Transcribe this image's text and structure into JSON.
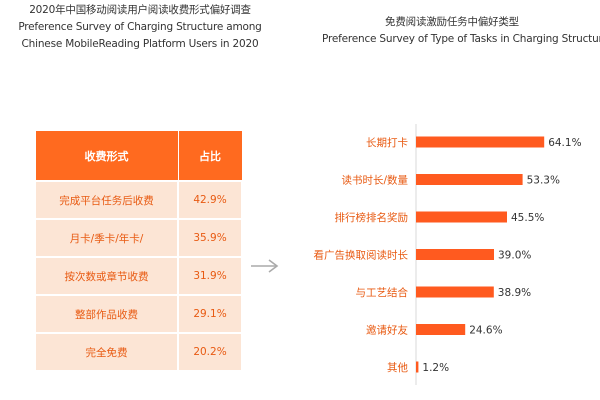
{
  "left_title": {
    "line1": "2020年中国移动阅读用户阅读收费形式偏好调查",
    "line2": "Preference Survey of Charging Structure among",
    "line3": "Chinese MobileReading Platform Users in 2020"
  },
  "right_title": {
    "line1": "免费阅读激励任务中偏好类型",
    "line2": "Preference Survey of Type of Tasks in Charging Structure"
  },
  "table": {
    "headers": [
      "收费形式",
      "占比"
    ],
    "rows": [
      {
        "form": "完成平台任务后收费",
        "share": "42.9%"
      },
      {
        "form": "月卡/季卡/年卡/",
        "share": "35.9%"
      },
      {
        "form": "按次数或章节收费",
        "share": "31.9%"
      },
      {
        "form": "整部作品收费",
        "share": "29.1%"
      },
      {
        "form": "完全免费",
        "share": "20.2%"
      }
    ]
  },
  "chart_data": {
    "type": "bar",
    "orientation": "horizontal",
    "title": "免费阅读激励任务中偏好类型 / Preference Survey of Type of Tasks in Charging Structure",
    "categories": [
      "长期打卡",
      "读书时长/数量",
      "排行榜排名奖励",
      "看广告换取阅读时长",
      "与工艺结合",
      "邀请好友",
      "其他"
    ],
    "values": [
      64.1,
      53.3,
      45.5,
      39.0,
      38.9,
      24.6,
      1.2
    ],
    "value_labels": [
      "64.1%",
      "53.3%",
      "45.5%",
      "39.0%",
      "38.9%",
      "24.6%",
      "1.2%"
    ],
    "unit": "%",
    "xlim": [
      0,
      70
    ],
    "grid": false,
    "legend": false
  },
  "colors": {
    "accent": "#FF5A1F",
    "header_bg": "#FF6A1F",
    "row_bg": "#FCE5D5",
    "row_text": "#E85A12",
    "arrow": "#AAAAAA"
  }
}
